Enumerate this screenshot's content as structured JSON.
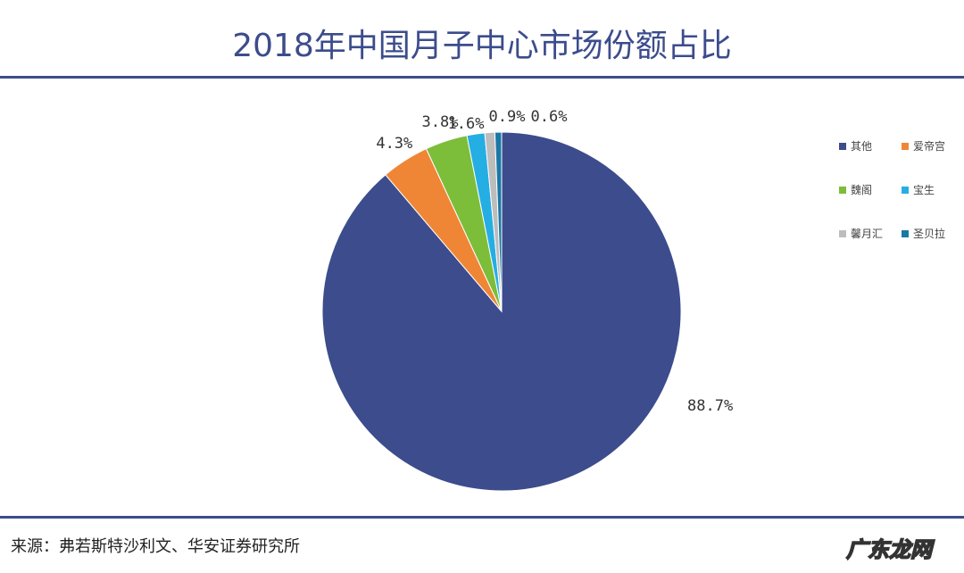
{
  "chart_data": {
    "type": "pie",
    "title": "2018年中国月子中心市场份额占比",
    "categories": [
      "其他",
      "爱帝宫",
      "魏阁",
      "宝生",
      "馨月汇",
      "圣贝拉"
    ],
    "values": [
      88.7,
      4.3,
      3.8,
      1.6,
      0.9,
      0.6
    ],
    "labels": [
      "88.7%",
      "4.3%",
      "3.8%",
      "1.6%",
      "0.9%",
      "0.6%"
    ],
    "colors": [
      "#3c4c8c",
      "#ef8636",
      "#7cbd3a",
      "#25aee3",
      "#bdbdbd",
      "#1a78a5"
    ],
    "start": "top",
    "direction": "clockwise",
    "legend_position": "right"
  },
  "source": "来源：弗若斯特沙利文、华安证券研究所",
  "watermark": "广东龙网"
}
